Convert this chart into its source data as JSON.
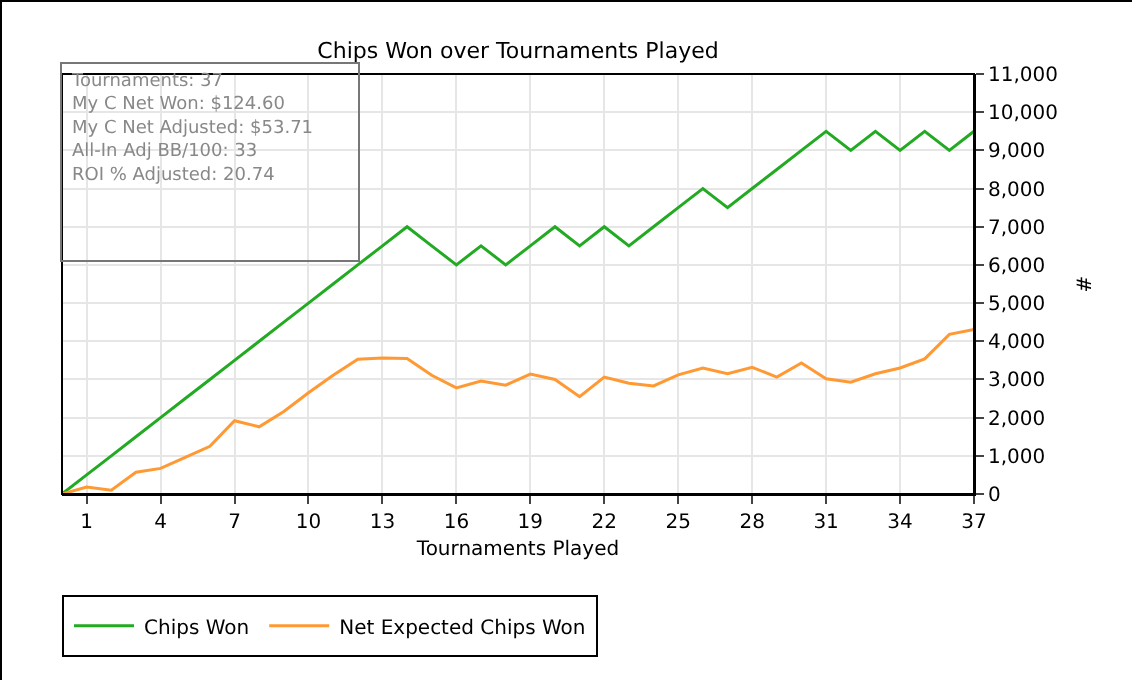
{
  "chart_data": {
    "type": "line",
    "title": "Chips Won over Tournaments Played",
    "xlabel": "Tournaments Played",
    "ylabel": "#",
    "x": [
      0,
      1,
      2,
      3,
      4,
      5,
      6,
      7,
      8,
      9,
      10,
      11,
      12,
      13,
      14,
      15,
      16,
      17,
      18,
      19,
      20,
      21,
      22,
      23,
      24,
      25,
      26,
      27,
      28,
      29,
      30,
      31,
      32,
      33,
      34,
      35,
      36,
      37
    ],
    "series": [
      {
        "name": "Chips Won",
        "color": "#22aa22",
        "values": [
          0,
          500,
          1000,
          1500,
          2000,
          2500,
          3000,
          3500,
          4000,
          4500,
          5000,
          5500,
          6000,
          6500,
          7000,
          6500,
          6000,
          6500,
          6000,
          6500,
          7000,
          6500,
          7000,
          6500,
          7000,
          7500,
          8000,
          7500,
          8000,
          8500,
          9000,
          9500,
          9000,
          9500,
          9000,
          9500,
          9000,
          9500
        ]
      },
      {
        "name": "Net Expected Chips Won",
        "color": "#ff9933",
        "values": [
          0,
          180,
          100,
          570,
          670,
          960,
          1250,
          1920,
          1760,
          2160,
          2650,
          3110,
          3530,
          3560,
          3550,
          3110,
          2780,
          2960,
          2850,
          3140,
          3000,
          2550,
          3060,
          2900,
          2830,
          3120,
          3300,
          3150,
          3320,
          3060,
          3430,
          3020,
          2930,
          3150,
          3300,
          3540,
          4180,
          4310
        ]
      }
    ],
    "xlim": [
      0,
      37
    ],
    "xticks": [
      1,
      4,
      7,
      10,
      13,
      16,
      19,
      22,
      25,
      28,
      31,
      34,
      37
    ],
    "ylim": [
      0,
      11000
    ],
    "yticks": [
      {
        "value": 0,
        "label": "0"
      },
      {
        "value": 1000,
        "label": "1,000"
      },
      {
        "value": 2000,
        "label": "2,000"
      },
      {
        "value": 3000,
        "label": "3,000"
      },
      {
        "value": 4000,
        "label": "4,000"
      },
      {
        "value": 5000,
        "label": "5,000"
      },
      {
        "value": 6000,
        "label": "6,000"
      },
      {
        "value": 7000,
        "label": "7,000"
      },
      {
        "value": 8000,
        "label": "8,000"
      },
      {
        "value": 9000,
        "label": "9,000"
      },
      {
        "value": 10000,
        "label": "10,000"
      },
      {
        "value": 11000,
        "label": "11,000"
      }
    ],
    "grid": true,
    "legend": "bottom left",
    "marker": "none",
    "line_style": "solid",
    "annotations": [
      "Tournaments: 37",
      "My C Net Won: $124.60",
      "My C Net Adjusted: $53.71",
      "All-In Adj BB/100: 33",
      "ROI % Adjusted: 20.74"
    ]
  }
}
